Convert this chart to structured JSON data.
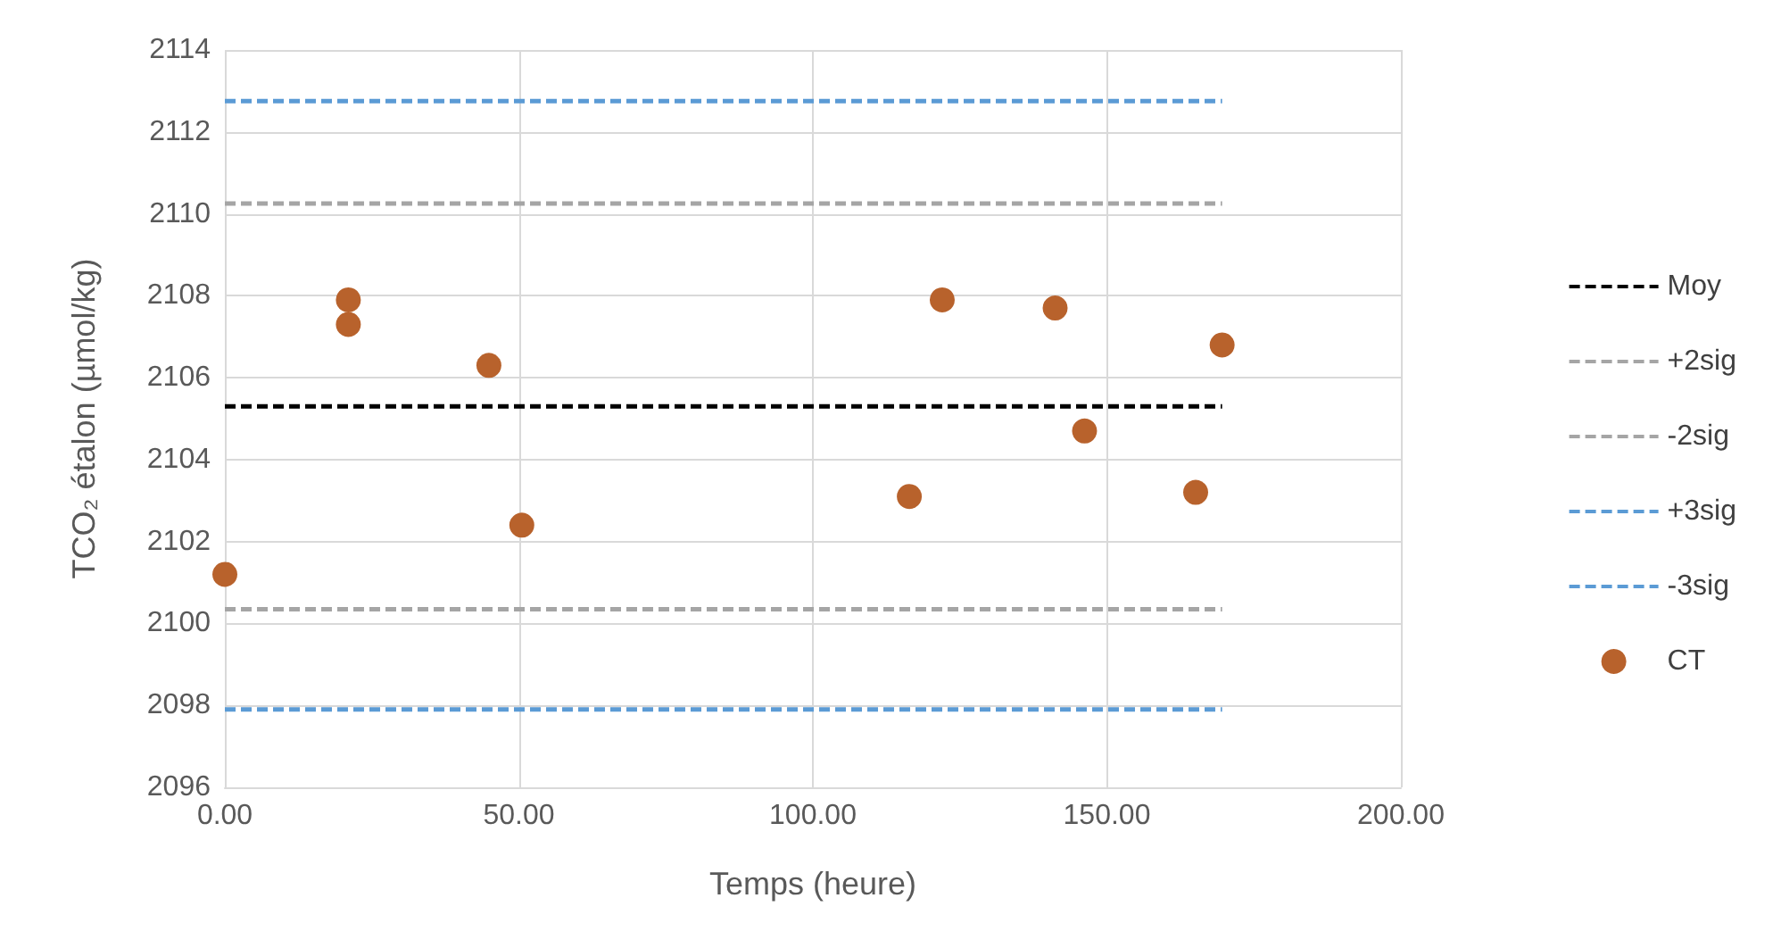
{
  "chart_data": {
    "type": "scatter",
    "xlabel": "Temps (heure)",
    "ylabel": "TCO₂ étalon (µmol/kg)",
    "xlim": [
      0,
      200
    ],
    "xticks": [
      {
        "value": 0,
        "label": "0.00"
      },
      {
        "value": 50,
        "label": "50.00"
      },
      {
        "value": 100,
        "label": "100.00"
      },
      {
        "value": 150,
        "label": "150.00"
      },
      {
        "value": 200,
        "label": "200.00"
      }
    ],
    "ylim": [
      2096,
      2114
    ],
    "yticks": [
      2096,
      2098,
      2100,
      2102,
      2104,
      2106,
      2108,
      2110,
      2112,
      2114
    ],
    "grid": true,
    "legend": "right",
    "series": [
      {
        "name": "Moy",
        "type": "line",
        "color": "#000000",
        "line_style": "dashed",
        "marker": "none",
        "x": [
          0,
          169.6
        ],
        "values": [
          2105.3,
          2105.3
        ]
      },
      {
        "name": "+2sig",
        "type": "line",
        "color": "#a5a5a5",
        "line_style": "dashed",
        "marker": "none",
        "x": [
          0,
          169.6
        ],
        "values": [
          2110.25,
          2110.25
        ]
      },
      {
        "name": "-2sig",
        "type": "line",
        "color": "#a5a5a5",
        "line_style": "dashed",
        "marker": "none",
        "x": [
          0,
          169.6
        ],
        "values": [
          2100.35,
          2100.35
        ]
      },
      {
        "name": "+3sig",
        "type": "line",
        "color": "#5b9bd5",
        "line_style": "dashed",
        "marker": "none",
        "x": [
          0,
          169.6
        ],
        "values": [
          2112.75,
          2112.75
        ]
      },
      {
        "name": "-3sig",
        "type": "line",
        "color": "#5b9bd5",
        "line_style": "dashed",
        "marker": "none",
        "x": [
          0,
          169.6
        ],
        "values": [
          2097.9,
          2097.9
        ]
      },
      {
        "name": "CT",
        "color": "#b8622c",
        "marker": "circle",
        "x": [
          0,
          21,
          21,
          44.9,
          50.5,
          116.4,
          122,
          141.2,
          146.2,
          165.1,
          169.6
        ],
        "values": [
          2101.2,
          2107.9,
          2107.3,
          2106.3,
          2102.4,
          2103.1,
          2107.9,
          2107.7,
          2104.7,
          2103.2,
          2106.8
        ]
      }
    ]
  }
}
